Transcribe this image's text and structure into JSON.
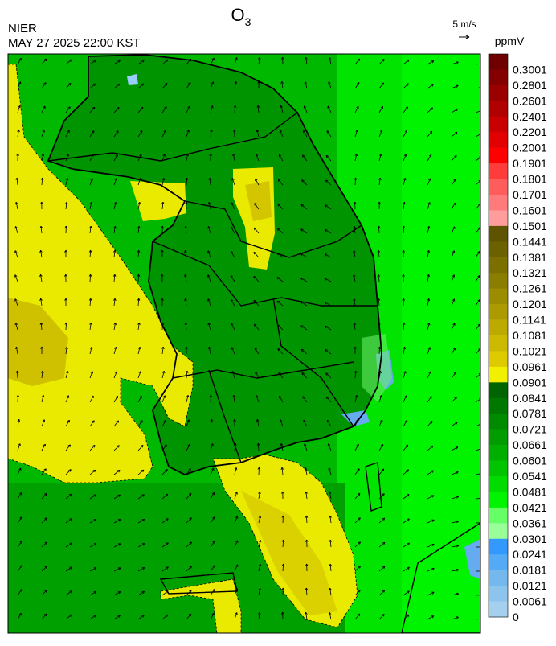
{
  "header": {
    "title": {
      "base": "O",
      "subscript": "3"
    },
    "source": "NIER",
    "datetime": "MAY 27 2025 22:00 KST",
    "wind_scale": "5 m/s",
    "unit": "ppmV"
  },
  "colorbar": [
    {
      "value": 0.3001,
      "color": "#6e0000"
    },
    {
      "value": 0.2801,
      "color": "#840000"
    },
    {
      "value": 0.2601,
      "color": "#9a0000"
    },
    {
      "value": 0.2401,
      "color": "#b00000"
    },
    {
      "value": 0.2201,
      "color": "#c80000"
    },
    {
      "value": 0.2001,
      "color": "#e20000"
    },
    {
      "value": 0.1901,
      "color": "#ff0000"
    },
    {
      "value": 0.1801,
      "color": "#ff3c3c"
    },
    {
      "value": 0.1701,
      "color": "#ff5c5c"
    },
    {
      "value": 0.1601,
      "color": "#ff7a7a"
    },
    {
      "value": 0.1501,
      "color": "#ff9c9c"
    },
    {
      "value": 0.1441,
      "color": "#5e5400"
    },
    {
      "value": 0.1381,
      "color": "#6c6100"
    },
    {
      "value": 0.1321,
      "color": "#7b6f00"
    },
    {
      "value": 0.1261,
      "color": "#8b7d00"
    },
    {
      "value": 0.1201,
      "color": "#9b8c00"
    },
    {
      "value": 0.1141,
      "color": "#ab9b00"
    },
    {
      "value": 0.1081,
      "color": "#bcaa00"
    },
    {
      "value": 0.1021,
      "color": "#ccba00"
    },
    {
      "value": 0.0961,
      "color": "#ddcb00"
    },
    {
      "value": 0.0901,
      "color": "#f0f000"
    },
    {
      "value": 0.0841,
      "color": "#006400"
    },
    {
      "value": 0.0781,
      "color": "#007800"
    },
    {
      "value": 0.0721,
      "color": "#008a00"
    },
    {
      "value": 0.0661,
      "color": "#009c00"
    },
    {
      "value": 0.0601,
      "color": "#00ae00"
    },
    {
      "value": 0.0541,
      "color": "#00c400"
    },
    {
      "value": 0.0481,
      "color": "#00dc00"
    },
    {
      "value": 0.0421,
      "color": "#00f400"
    },
    {
      "value": 0.0361,
      "color": "#66ff66"
    },
    {
      "value": 0.0301,
      "color": "#99ff99"
    },
    {
      "value": 0.0241,
      "color": "#3399ff"
    },
    {
      "value": 0.0181,
      "color": "#55aaf5"
    },
    {
      "value": 0.0121,
      "color": "#74b8ee"
    },
    {
      "value": 0.0061,
      "color": "#8cc4ee"
    },
    {
      "value": 0,
      "color": "#a4d0ee"
    }
  ]
}
